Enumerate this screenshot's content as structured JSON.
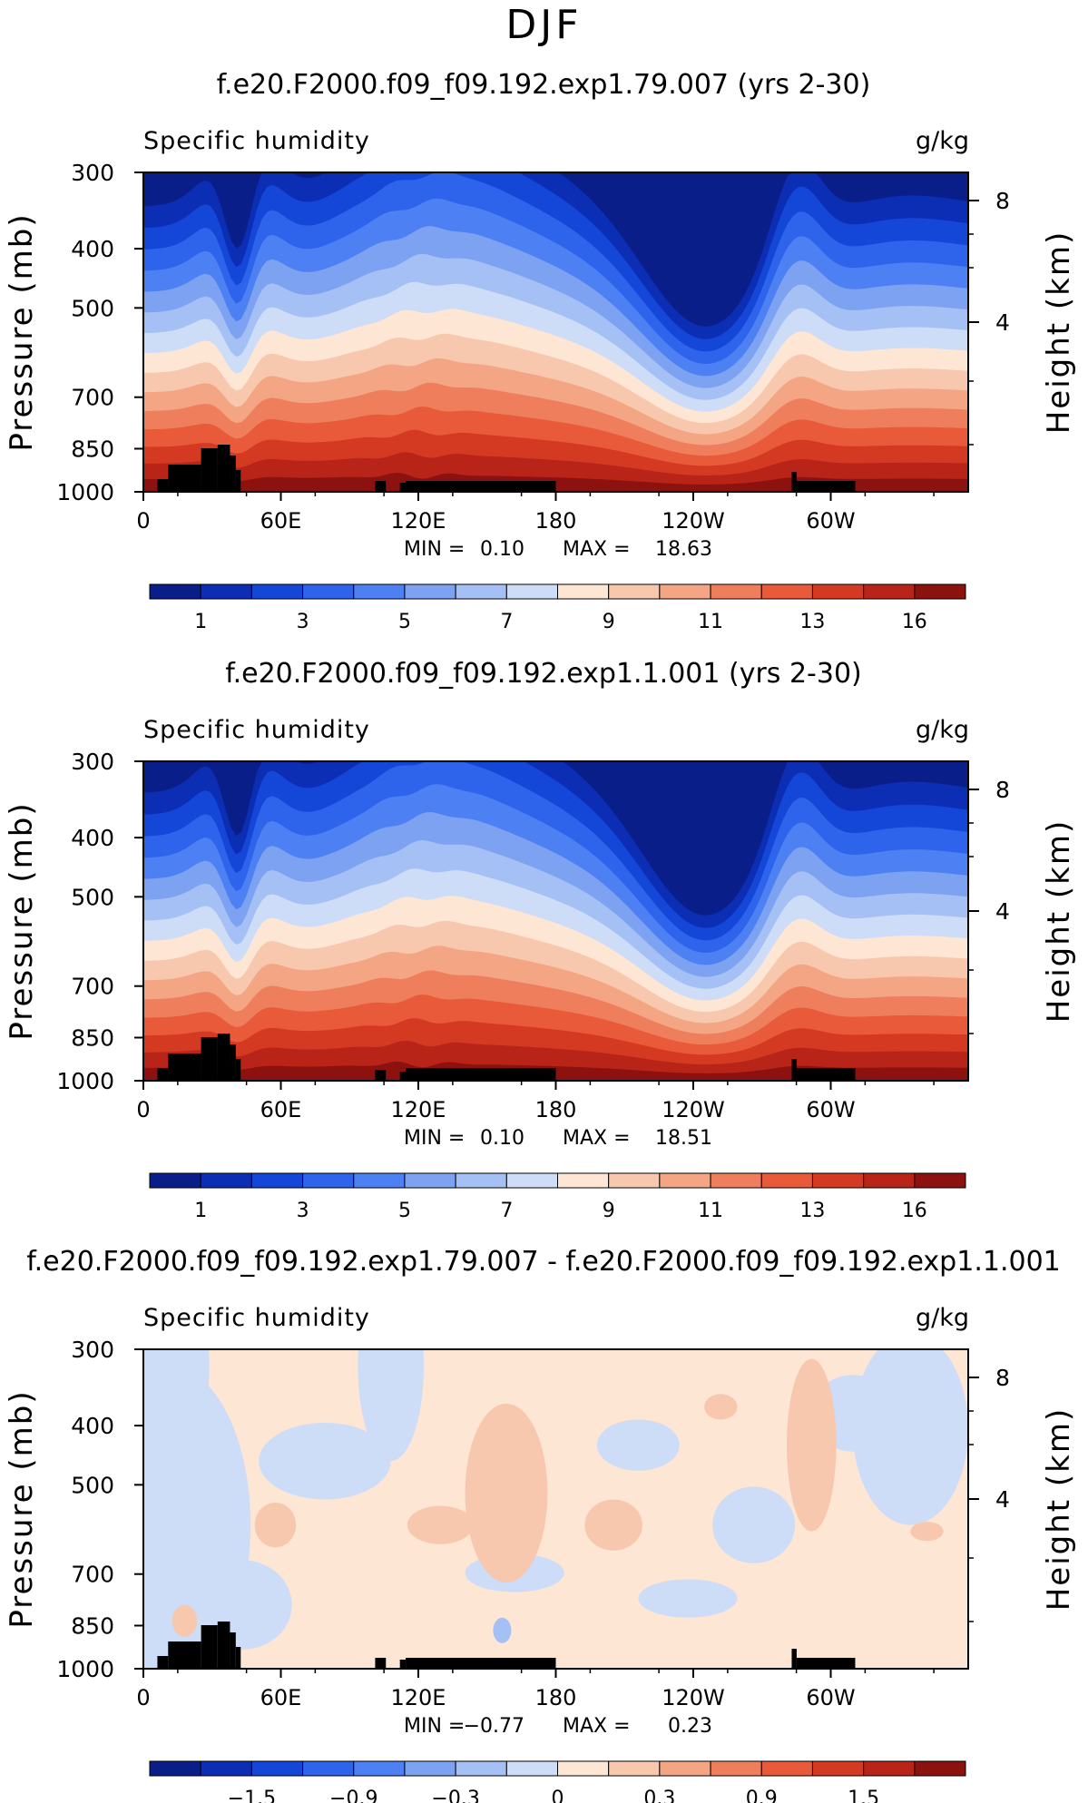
{
  "super_title": "DJF",
  "colors": {
    "land": "#000000",
    "ramp": [
      "#0a1e8a",
      "#0b2eb4",
      "#1447d8",
      "#2e63ec",
      "#4d80f2",
      "#7da2f2",
      "#a5c0f4",
      "#cddcf7",
      "#fde6d4",
      "#f7c8ad",
      "#f4a583",
      "#ef7f5c",
      "#e85a3a",
      "#d43a22",
      "#b82418",
      "#8c1210"
    ],
    "diff_ramp": [
      "#0a1e8a",
      "#0b2eb4",
      "#1447d8",
      "#2e63ec",
      "#4d80f2",
      "#7da2f2",
      "#a5c0f4",
      "#cddcf7",
      "#fde6d4",
      "#f7c8ad",
      "#f4a583",
      "#ef7f5c",
      "#e85a3a",
      "#d43a22",
      "#b82418",
      "#8c1210"
    ]
  },
  "chart_data": [
    {
      "type": "heatmap",
      "title": "f.e20.F2000.f09_f09.192.exp1.79.007 (yrs 2-30)",
      "left_string": "Specific humidity",
      "right_string": "g/kg",
      "ylabel": "Pressure (mb)",
      "ylabel_right": "Height (km)",
      "x_ticks": [
        "0",
        "60E",
        "120E",
        "180",
        "120W",
        "60W"
      ],
      "y_ticks": [
        "300",
        "400",
        "500",
        "700",
        "850",
        "1000"
      ],
      "y_ticks_right": [
        "8",
        "4"
      ],
      "min_label": "MIN =",
      "min_value": "0.10",
      "max_label": "MAX =",
      "max_value": "18.63",
      "colorbar_labels": [
        "1",
        "3",
        "5",
        "7",
        "9",
        "11",
        "13",
        "16"
      ],
      "xlim": [
        0,
        360
      ],
      "ylim": [
        1000,
        300
      ],
      "y_scale": "log"
    },
    {
      "type": "heatmap",
      "title": "f.e20.F2000.f09_f09.192.exp1.1.001 (yrs 2-30)",
      "left_string": "Specific humidity",
      "right_string": "g/kg",
      "ylabel": "Pressure (mb)",
      "ylabel_right": "Height (km)",
      "x_ticks": [
        "0",
        "60E",
        "120E",
        "180",
        "120W",
        "60W"
      ],
      "y_ticks": [
        "300",
        "400",
        "500",
        "700",
        "850",
        "1000"
      ],
      "y_ticks_right": [
        "8",
        "4"
      ],
      "min_label": "MIN =",
      "min_value": "0.10",
      "max_label": "MAX =",
      "max_value": "18.51",
      "colorbar_labels": [
        "1",
        "3",
        "5",
        "7",
        "9",
        "11",
        "13",
        "16"
      ],
      "xlim": [
        0,
        360
      ],
      "ylim": [
        1000,
        300
      ],
      "y_scale": "log"
    },
    {
      "type": "heatmap",
      "title": "f.e20.F2000.f09_f09.192.exp1.79.007 - f.e20.F2000.f09_f09.192.exp1.1.001",
      "left_string": "Specific humidity",
      "right_string": "g/kg",
      "ylabel": "Pressure (mb)",
      "ylabel_right": "Height (km)",
      "x_ticks": [
        "0",
        "60E",
        "120E",
        "180",
        "120W",
        "60W"
      ],
      "y_ticks": [
        "300",
        "400",
        "500",
        "700",
        "850",
        "1000"
      ],
      "y_ticks_right": [
        "8",
        "4"
      ],
      "min_label": "MIN =",
      "min_value": "−0.77",
      "max_label": "MAX =",
      "max_value": "0.23",
      "colorbar_labels": [
        "−1.5",
        "−0.9",
        "−0.3",
        "0",
        "0.3",
        "0.9",
        "1.5"
      ],
      "xlim": [
        0,
        360
      ],
      "ylim": [
        1000,
        300
      ],
      "y_scale": "log"
    }
  ]
}
